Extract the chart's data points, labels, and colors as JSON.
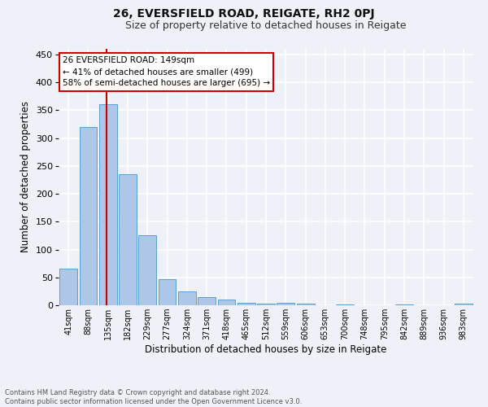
{
  "title": "26, EVERSFIELD ROAD, REIGATE, RH2 0PJ",
  "subtitle": "Size of property relative to detached houses in Reigate",
  "xlabel": "Distribution of detached houses by size in Reigate",
  "ylabel": "Number of detached properties",
  "bar_color": "#aec6e8",
  "bar_edge_color": "#5a9fd4",
  "bin_labels": [
    "41sqm",
    "88sqm",
    "135sqm",
    "182sqm",
    "229sqm",
    "277sqm",
    "324sqm",
    "371sqm",
    "418sqm",
    "465sqm",
    "512sqm",
    "559sqm",
    "606sqm",
    "653sqm",
    "700sqm",
    "748sqm",
    "795sqm",
    "842sqm",
    "889sqm",
    "936sqm",
    "983sqm"
  ],
  "bar_heights": [
    65,
    320,
    360,
    235,
    125,
    47,
    25,
    15,
    10,
    5,
    3,
    4,
    3,
    0,
    2,
    0,
    0,
    2,
    0,
    0,
    3
  ],
  "vline_color": "#cc0000",
  "vline_x": 1.93,
  "ylim": [
    0,
    460
  ],
  "yticks": [
    0,
    50,
    100,
    150,
    200,
    250,
    300,
    350,
    400,
    450
  ],
  "annotation_title": "26 EVERSFIELD ROAD: 149sqm",
  "annotation_line1": "← 41% of detached houses are smaller (499)",
  "annotation_line2": "58% of semi-detached houses are larger (695) →",
  "annotation_box_color": "#ffffff",
  "annotation_box_edge": "#cc0000",
  "footer1": "Contains HM Land Registry data © Crown copyright and database right 2024.",
  "footer2": "Contains public sector information licensed under the Open Government Licence v3.0.",
  "bg_color": "#eef2f8",
  "grid_color": "#ffffff"
}
